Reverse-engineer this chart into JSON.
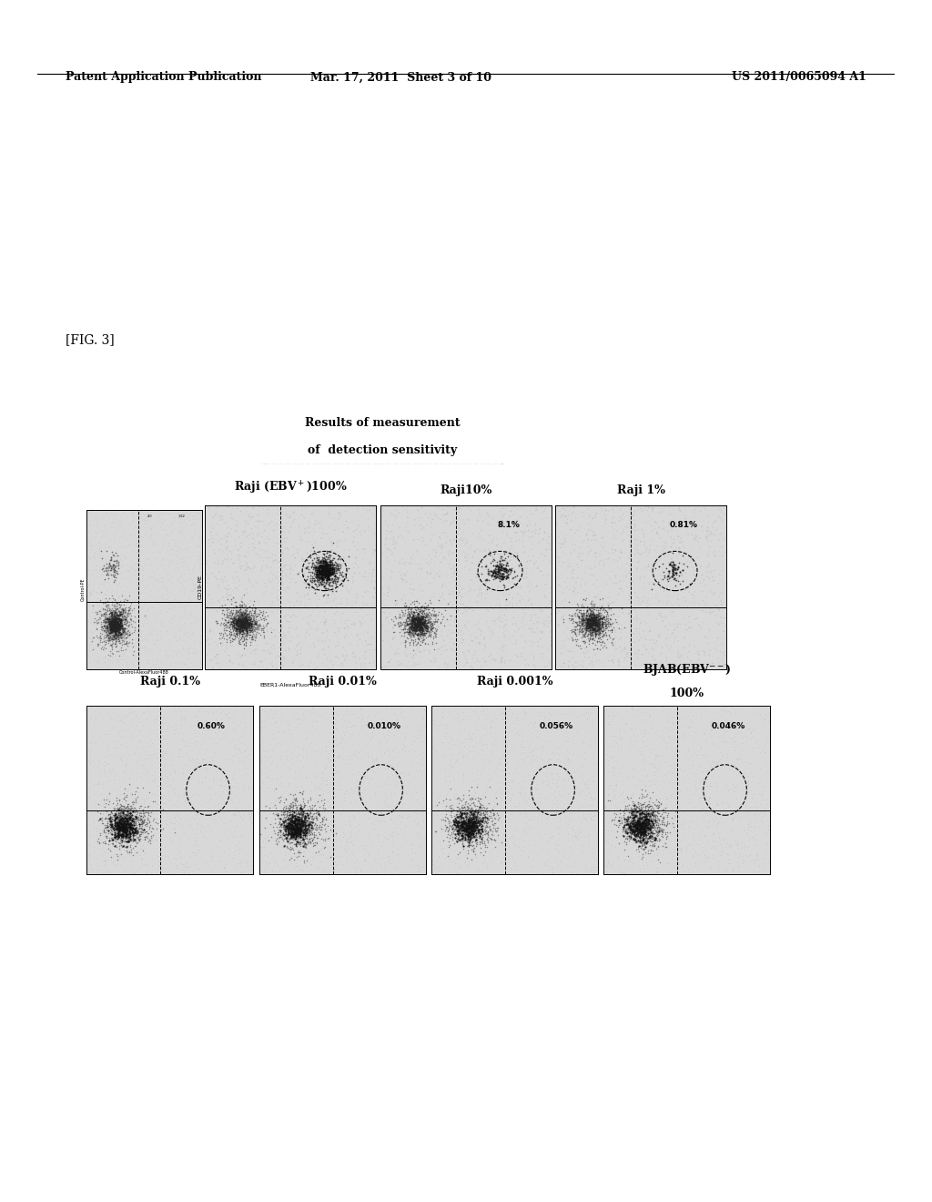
{
  "patent_header": {
    "left": "Patent Application Publication",
    "center": "Mar. 17, 2011  Sheet 3 of 10",
    "right": "US 2011/0065094 A1"
  },
  "fig_label": "[FIG. 3]",
  "box_title_line1": "Results of measurement",
  "box_title_line2": "of  detection sensitivity",
  "row1_titles": [
    "Raji (EBV⁺)100%",
    "Raji10%",
    "Raji 1%"
  ],
  "row2_titles": [
    "Raji 0.1%",
    "Raji 0.01%",
    "Raji 0.001%",
    "BJAB(EBV⁻⁻)\n100%"
  ],
  "row1_percentages": [
    "",
    "8.1%",
    "0.81%"
  ],
  "row2_percentages": [
    "0.60%",
    "0.010%",
    "0.056%",
    "0.046%"
  ],
  "control_xlabel": "Control-AlexaFluor488",
  "control_ylabel": "Control-PE",
  "main_xlabel": "EBER1-AlexaFluor488",
  "main_ylabel": "CD19-PE",
  "bg_color": "#ffffff"
}
